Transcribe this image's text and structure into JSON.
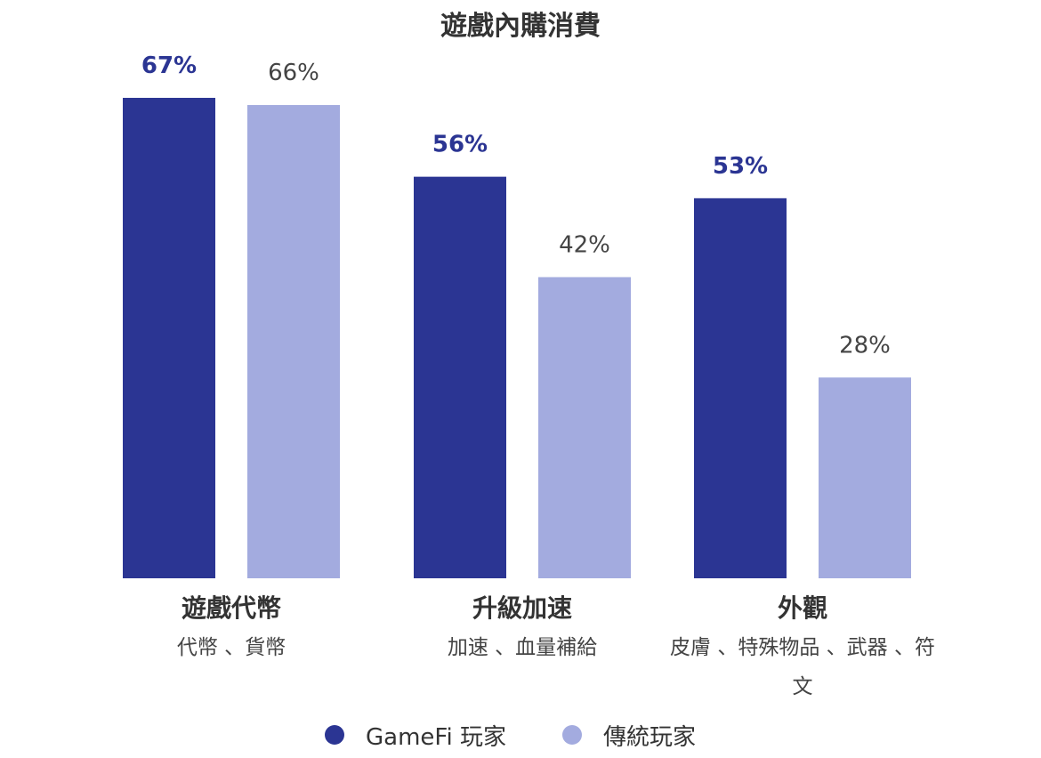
{
  "chart_data": {
    "type": "bar",
    "title": "遊戲內購消費",
    "categories": [
      {
        "name": "遊戲代幣",
        "description": "代幣 、貨幣"
      },
      {
        "name": "升級加速",
        "description": "加速 、血量補給"
      },
      {
        "name": "外觀",
        "description": "皮膚 、特殊物品 、武器 、符文"
      }
    ],
    "series": [
      {
        "name": "GameFi 玩家",
        "color": "#2b3593",
        "values": [
          67,
          56,
          53
        ],
        "labels": [
          "67%",
          "56%",
          "53%"
        ]
      },
      {
        "name": "傳統玩家",
        "color": "#a3abdf",
        "values": [
          66,
          42,
          28
        ],
        "labels": [
          "66%",
          "42%",
          "28%"
        ]
      }
    ],
    "unit": "%",
    "ylim": [
      0,
      100
    ],
    "grid": false,
    "legend_position": "bottom-center"
  }
}
